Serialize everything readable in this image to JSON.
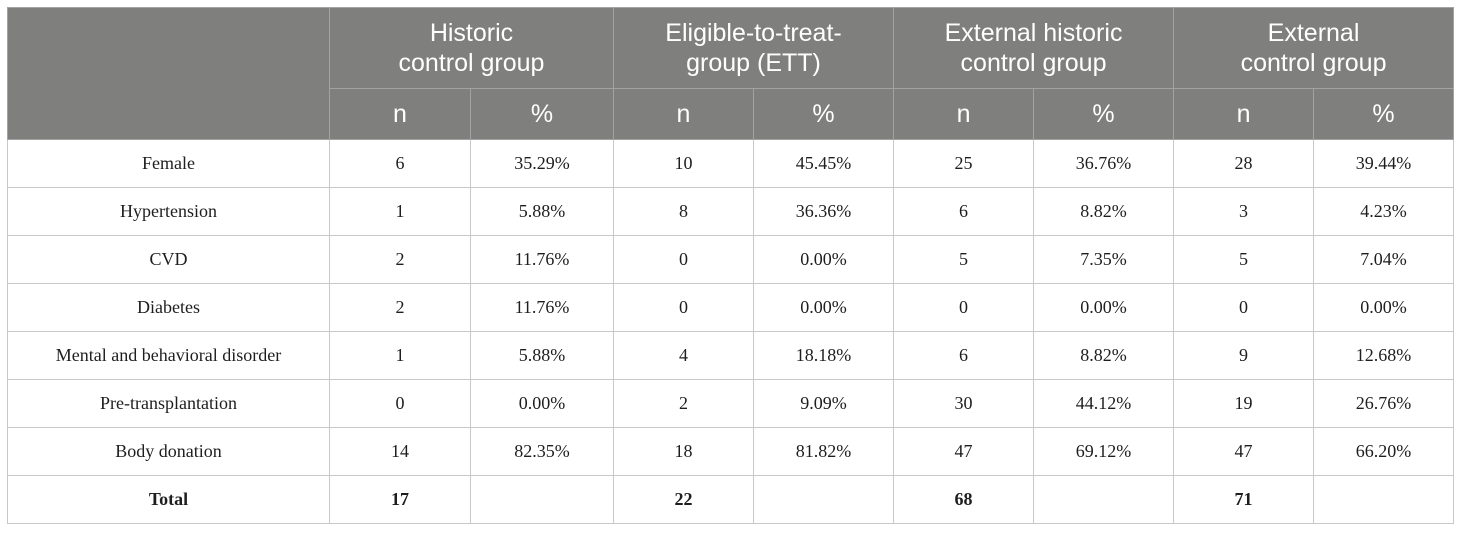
{
  "table": {
    "groups": [
      {
        "label": "Historic\ncontrol group"
      },
      {
        "label": "Eligible-to-treat-\ngroup (ETT)"
      },
      {
        "label": "External historic\ncontrol group"
      },
      {
        "label": "External\ncontrol group"
      }
    ],
    "subheaders": [
      "n",
      "%",
      "n",
      "%",
      "n",
      "%",
      "n",
      "%"
    ],
    "rows": [
      {
        "label": "Female",
        "cells": [
          "6",
          "35.29%",
          "10",
          "45.45%",
          "25",
          "36.76%",
          "28",
          "39.44%"
        ]
      },
      {
        "label": "Hypertension",
        "cells": [
          "1",
          "5.88%",
          "8",
          "36.36%",
          "6",
          "8.82%",
          "3",
          "4.23%"
        ]
      },
      {
        "label": "CVD",
        "cells": [
          "2",
          "11.76%",
          "0",
          "0.00%",
          "5",
          "7.35%",
          "5",
          "7.04%"
        ]
      },
      {
        "label": "Diabetes",
        "cells": [
          "2",
          "11.76%",
          "0",
          "0.00%",
          "0",
          "0.00%",
          "0",
          "0.00%"
        ]
      },
      {
        "label": "Mental and behavioral disorder",
        "cells": [
          "1",
          "5.88%",
          "4",
          "18.18%",
          "6",
          "8.82%",
          "9",
          "12.68%"
        ]
      },
      {
        "label": "Pre-transplantation",
        "cells": [
          "0",
          "0.00%",
          "2",
          "9.09%",
          "30",
          "44.12%",
          "19",
          "26.76%"
        ]
      },
      {
        "label": "Body donation",
        "cells": [
          "14",
          "82.35%",
          "18",
          "81.82%",
          "47",
          "69.12%",
          "47",
          "66.20%"
        ]
      },
      {
        "label": "Total",
        "cells": [
          "17",
          "",
          "22",
          "",
          "68",
          "",
          "71",
          ""
        ]
      }
    ]
  }
}
